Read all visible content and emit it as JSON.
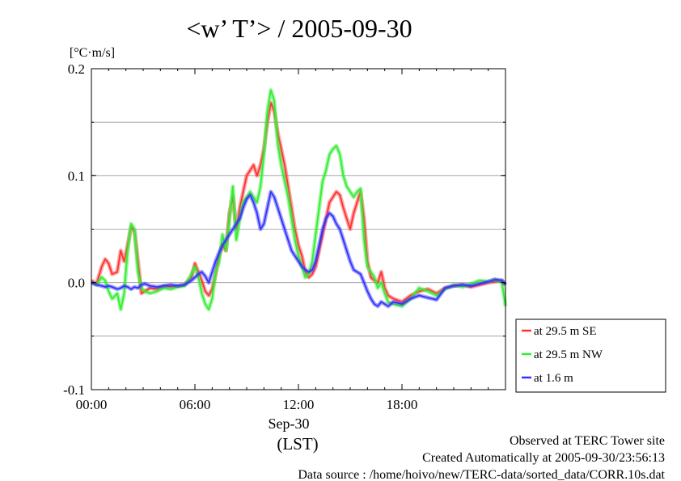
{
  "chart_data": {
    "type": "line",
    "title": "<w’ T’> / 2005-09-30",
    "ylabel": "[°C·m/s]",
    "ylim": [
      -0.1,
      0.2
    ],
    "yticks": [
      -0.1,
      0.0,
      0.1,
      0.2
    ],
    "ytick_labels": [
      "-0.1",
      "0.0",
      "0.1",
      "0.2"
    ],
    "xlim": [
      0,
      24
    ],
    "xticks": [
      0,
      6,
      12,
      18
    ],
    "xtick_labels": [
      "00:00",
      "06:00",
      "12:00",
      "18:00"
    ],
    "x_date_label": "Sep-30",
    "x_unit_label": "(LST)",
    "grid": true,
    "legend_position": "right, lower",
    "series": [
      {
        "name": "at 29.5 m SE",
        "color": "#ff3333",
        "x": [
          0,
          0.3,
          0.6,
          0.8,
          1.0,
          1.2,
          1.5,
          1.7,
          1.9,
          2.1,
          2.3,
          2.5,
          2.7,
          2.9,
          3.1,
          3.4,
          3.8,
          4.2,
          4.6,
          5.0,
          5.4,
          5.8,
          6.0,
          6.2,
          6.4,
          6.6,
          6.8,
          7.0,
          7.2,
          7.4,
          7.6,
          7.8,
          8.0,
          8.2,
          8.4,
          8.6,
          8.8,
          9.0,
          9.2,
          9.4,
          9.6,
          9.8,
          10.0,
          10.2,
          10.4,
          10.6,
          10.8,
          11.0,
          11.2,
          11.4,
          11.6,
          11.8,
          12.0,
          12.2,
          12.4,
          12.6,
          12.8,
          13.0,
          13.2,
          13.4,
          13.6,
          13.8,
          14.0,
          14.2,
          14.4,
          14.6,
          14.8,
          15.0,
          15.2,
          15.4,
          15.6,
          15.8,
          16.0,
          16.2,
          16.4,
          16.6,
          16.8,
          17.0,
          17.2,
          17.5,
          18.0,
          18.5,
          19.0,
          19.5,
          20.0,
          20.5,
          21.0,
          21.5,
          22.0,
          22.5,
          23.0,
          23.4,
          23.8,
          24.0
        ],
        "values": [
          0.002,
          -0.001,
          0.015,
          0.022,
          0.018,
          0.008,
          0.01,
          0.03,
          0.02,
          0.035,
          0.052,
          0.048,
          0.02,
          -0.01,
          -0.008,
          -0.005,
          -0.006,
          -0.003,
          -0.004,
          -0.003,
          -0.002,
          0.005,
          0.018,
          0.01,
          0.002,
          -0.008,
          -0.012,
          -0.006,
          0.008,
          0.025,
          0.035,
          0.03,
          0.065,
          0.08,
          0.05,
          0.07,
          0.085,
          0.1,
          0.105,
          0.11,
          0.1,
          0.11,
          0.125,
          0.15,
          0.168,
          0.16,
          0.14,
          0.125,
          0.11,
          0.09,
          0.07,
          0.05,
          0.035,
          0.025,
          0.01,
          0.005,
          0.008,
          0.015,
          0.03,
          0.045,
          0.06,
          0.075,
          0.08,
          0.085,
          0.082,
          0.07,
          0.06,
          0.05,
          0.065,
          0.075,
          0.085,
          0.06,
          0.02,
          0.005,
          0.002,
          0.0,
          0.01,
          -0.005,
          -0.012,
          -0.015,
          -0.018,
          -0.012,
          -0.008,
          -0.006,
          -0.01,
          -0.005,
          -0.003,
          -0.002,
          -0.004,
          -0.002,
          0.0,
          0.001,
          0.002,
          -0.002
        ]
      },
      {
        "name": "at 29.5 m NW",
        "color": "#33ee33",
        "x": [
          0,
          0.3,
          0.6,
          0.8,
          1.0,
          1.2,
          1.5,
          1.7,
          1.9,
          2.1,
          2.3,
          2.5,
          2.7,
          2.9,
          3.1,
          3.4,
          3.8,
          4.2,
          4.6,
          5.0,
          5.4,
          5.8,
          6.0,
          6.2,
          6.4,
          6.6,
          6.8,
          7.0,
          7.2,
          7.4,
          7.6,
          7.8,
          8.0,
          8.2,
          8.4,
          8.6,
          8.8,
          9.0,
          9.2,
          9.4,
          9.6,
          9.8,
          10.0,
          10.2,
          10.4,
          10.6,
          10.8,
          11.0,
          11.2,
          11.4,
          11.6,
          11.8,
          12.0,
          12.2,
          12.4,
          12.6,
          12.8,
          13.0,
          13.2,
          13.4,
          13.6,
          13.8,
          14.0,
          14.2,
          14.4,
          14.6,
          14.8,
          15.0,
          15.2,
          15.4,
          15.6,
          15.8,
          16.0,
          16.2,
          16.4,
          16.6,
          16.8,
          17.0,
          17.2,
          17.5,
          18.0,
          18.5,
          19.0,
          19.5,
          20.0,
          20.5,
          21.0,
          21.5,
          22.0,
          22.5,
          23.0,
          23.4,
          23.8,
          24.0
        ],
        "values": [
          0.0,
          -0.002,
          0.005,
          0.002,
          -0.008,
          -0.015,
          -0.01,
          -0.025,
          -0.01,
          0.03,
          0.055,
          0.05,
          0.01,
          -0.005,
          -0.008,
          -0.01,
          -0.008,
          -0.005,
          -0.006,
          -0.004,
          -0.003,
          0.008,
          0.015,
          0.005,
          -0.01,
          -0.02,
          -0.025,
          -0.015,
          0.01,
          0.02,
          0.045,
          0.03,
          0.06,
          0.09,
          0.04,
          0.06,
          0.075,
          0.08,
          0.085,
          0.08,
          0.075,
          0.09,
          0.12,
          0.16,
          0.18,
          0.17,
          0.13,
          0.11,
          0.095,
          0.08,
          0.06,
          0.04,
          0.025,
          0.015,
          0.005,
          0.008,
          0.02,
          0.045,
          0.07,
          0.095,
          0.105,
          0.12,
          0.125,
          0.128,
          0.12,
          0.1,
          0.09,
          0.085,
          0.08,
          0.085,
          0.088,
          0.04,
          0.015,
          0.01,
          0.005,
          -0.005,
          0.0,
          -0.01,
          -0.018,
          -0.02,
          -0.022,
          -0.015,
          -0.005,
          -0.008,
          -0.012,
          -0.006,
          -0.002,
          -0.004,
          -0.001,
          0.002,
          0.001,
          0.003,
          0.0,
          -0.022
        ]
      },
      {
        "name": "at 1.6 m",
        "color": "#3333ff",
        "x": [
          0,
          0.3,
          0.6,
          0.8,
          1.0,
          1.2,
          1.5,
          1.7,
          1.9,
          2.1,
          2.3,
          2.5,
          2.7,
          2.9,
          3.1,
          3.4,
          3.8,
          4.2,
          4.6,
          5.0,
          5.4,
          5.8,
          6.0,
          6.2,
          6.4,
          6.6,
          6.8,
          7.0,
          7.2,
          7.4,
          7.6,
          7.8,
          8.0,
          8.2,
          8.4,
          8.6,
          8.8,
          9.0,
          9.2,
          9.4,
          9.6,
          9.8,
          10.0,
          10.2,
          10.4,
          10.6,
          10.8,
          11.0,
          11.2,
          11.4,
          11.6,
          11.8,
          12.0,
          12.2,
          12.4,
          12.6,
          12.8,
          13.0,
          13.2,
          13.4,
          13.6,
          13.8,
          14.0,
          14.2,
          14.4,
          14.6,
          14.8,
          15.0,
          15.2,
          15.4,
          15.6,
          15.8,
          16.0,
          16.2,
          16.4,
          16.6,
          16.8,
          17.0,
          17.2,
          17.5,
          18.0,
          18.5,
          19.0,
          19.5,
          20.0,
          20.5,
          21.0,
          21.5,
          22.0,
          22.5,
          23.0,
          23.4,
          23.8,
          24.0
        ],
        "values": [
          0.0,
          -0.002,
          -0.003,
          -0.004,
          -0.003,
          -0.004,
          -0.006,
          -0.005,
          -0.003,
          -0.004,
          -0.006,
          -0.004,
          -0.005,
          -0.002,
          -0.001,
          -0.003,
          -0.004,
          -0.003,
          -0.002,
          -0.003,
          -0.002,
          0.002,
          0.005,
          0.008,
          0.01,
          0.006,
          0.0,
          0.01,
          0.02,
          0.028,
          0.035,
          0.04,
          0.045,
          0.05,
          0.055,
          0.06,
          0.07,
          0.078,
          0.082,
          0.075,
          0.065,
          0.05,
          0.055,
          0.07,
          0.085,
          0.08,
          0.07,
          0.06,
          0.05,
          0.04,
          0.03,
          0.025,
          0.02,
          0.015,
          0.012,
          0.01,
          0.012,
          0.02,
          0.035,
          0.05,
          0.06,
          0.065,
          0.062,
          0.055,
          0.05,
          0.04,
          0.03,
          0.02,
          0.012,
          0.01,
          0.008,
          0.0,
          -0.008,
          -0.015,
          -0.02,
          -0.022,
          -0.018,
          -0.02,
          -0.022,
          -0.018,
          -0.02,
          -0.015,
          -0.012,
          -0.014,
          -0.016,
          -0.005,
          -0.003,
          -0.002,
          -0.003,
          -0.001,
          0.001,
          0.003,
          0.002,
          -0.002
        ]
      }
    ],
    "footer": [
      "Observed at TERC Tower site",
      "Created Automatically at 2005-09-30/23:56:13",
      "Data source : /home/hoivo/new/TERC-data/sorted_data/CORR.10s.dat"
    ]
  }
}
